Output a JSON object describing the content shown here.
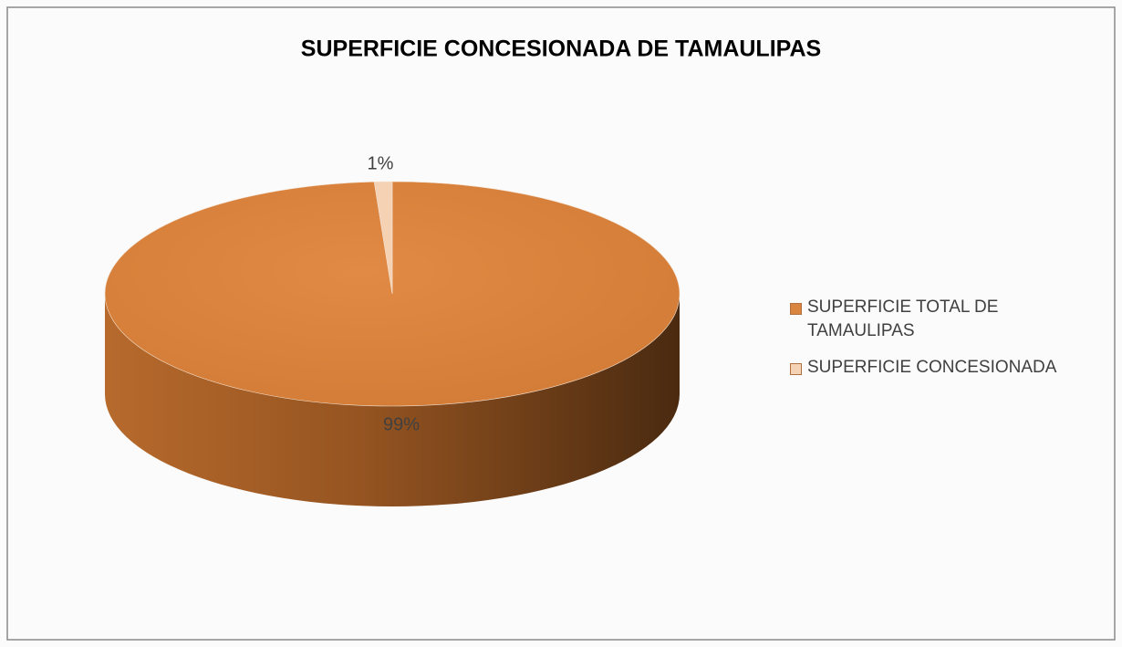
{
  "chart_data": {
    "type": "pie",
    "title": "SUPERFICIE CONCESIONADA DE TAMAULIPAS",
    "categories": [
      "SUPERFICIE TOTAL DE TAMAULIPAS",
      "SUPERFICIE CONCESIONADA"
    ],
    "values": [
      99,
      1
    ],
    "value_labels": [
      "99%",
      "1%"
    ],
    "colors": [
      "#d9843f",
      "#f6d2b4"
    ],
    "legend": "right"
  }
}
